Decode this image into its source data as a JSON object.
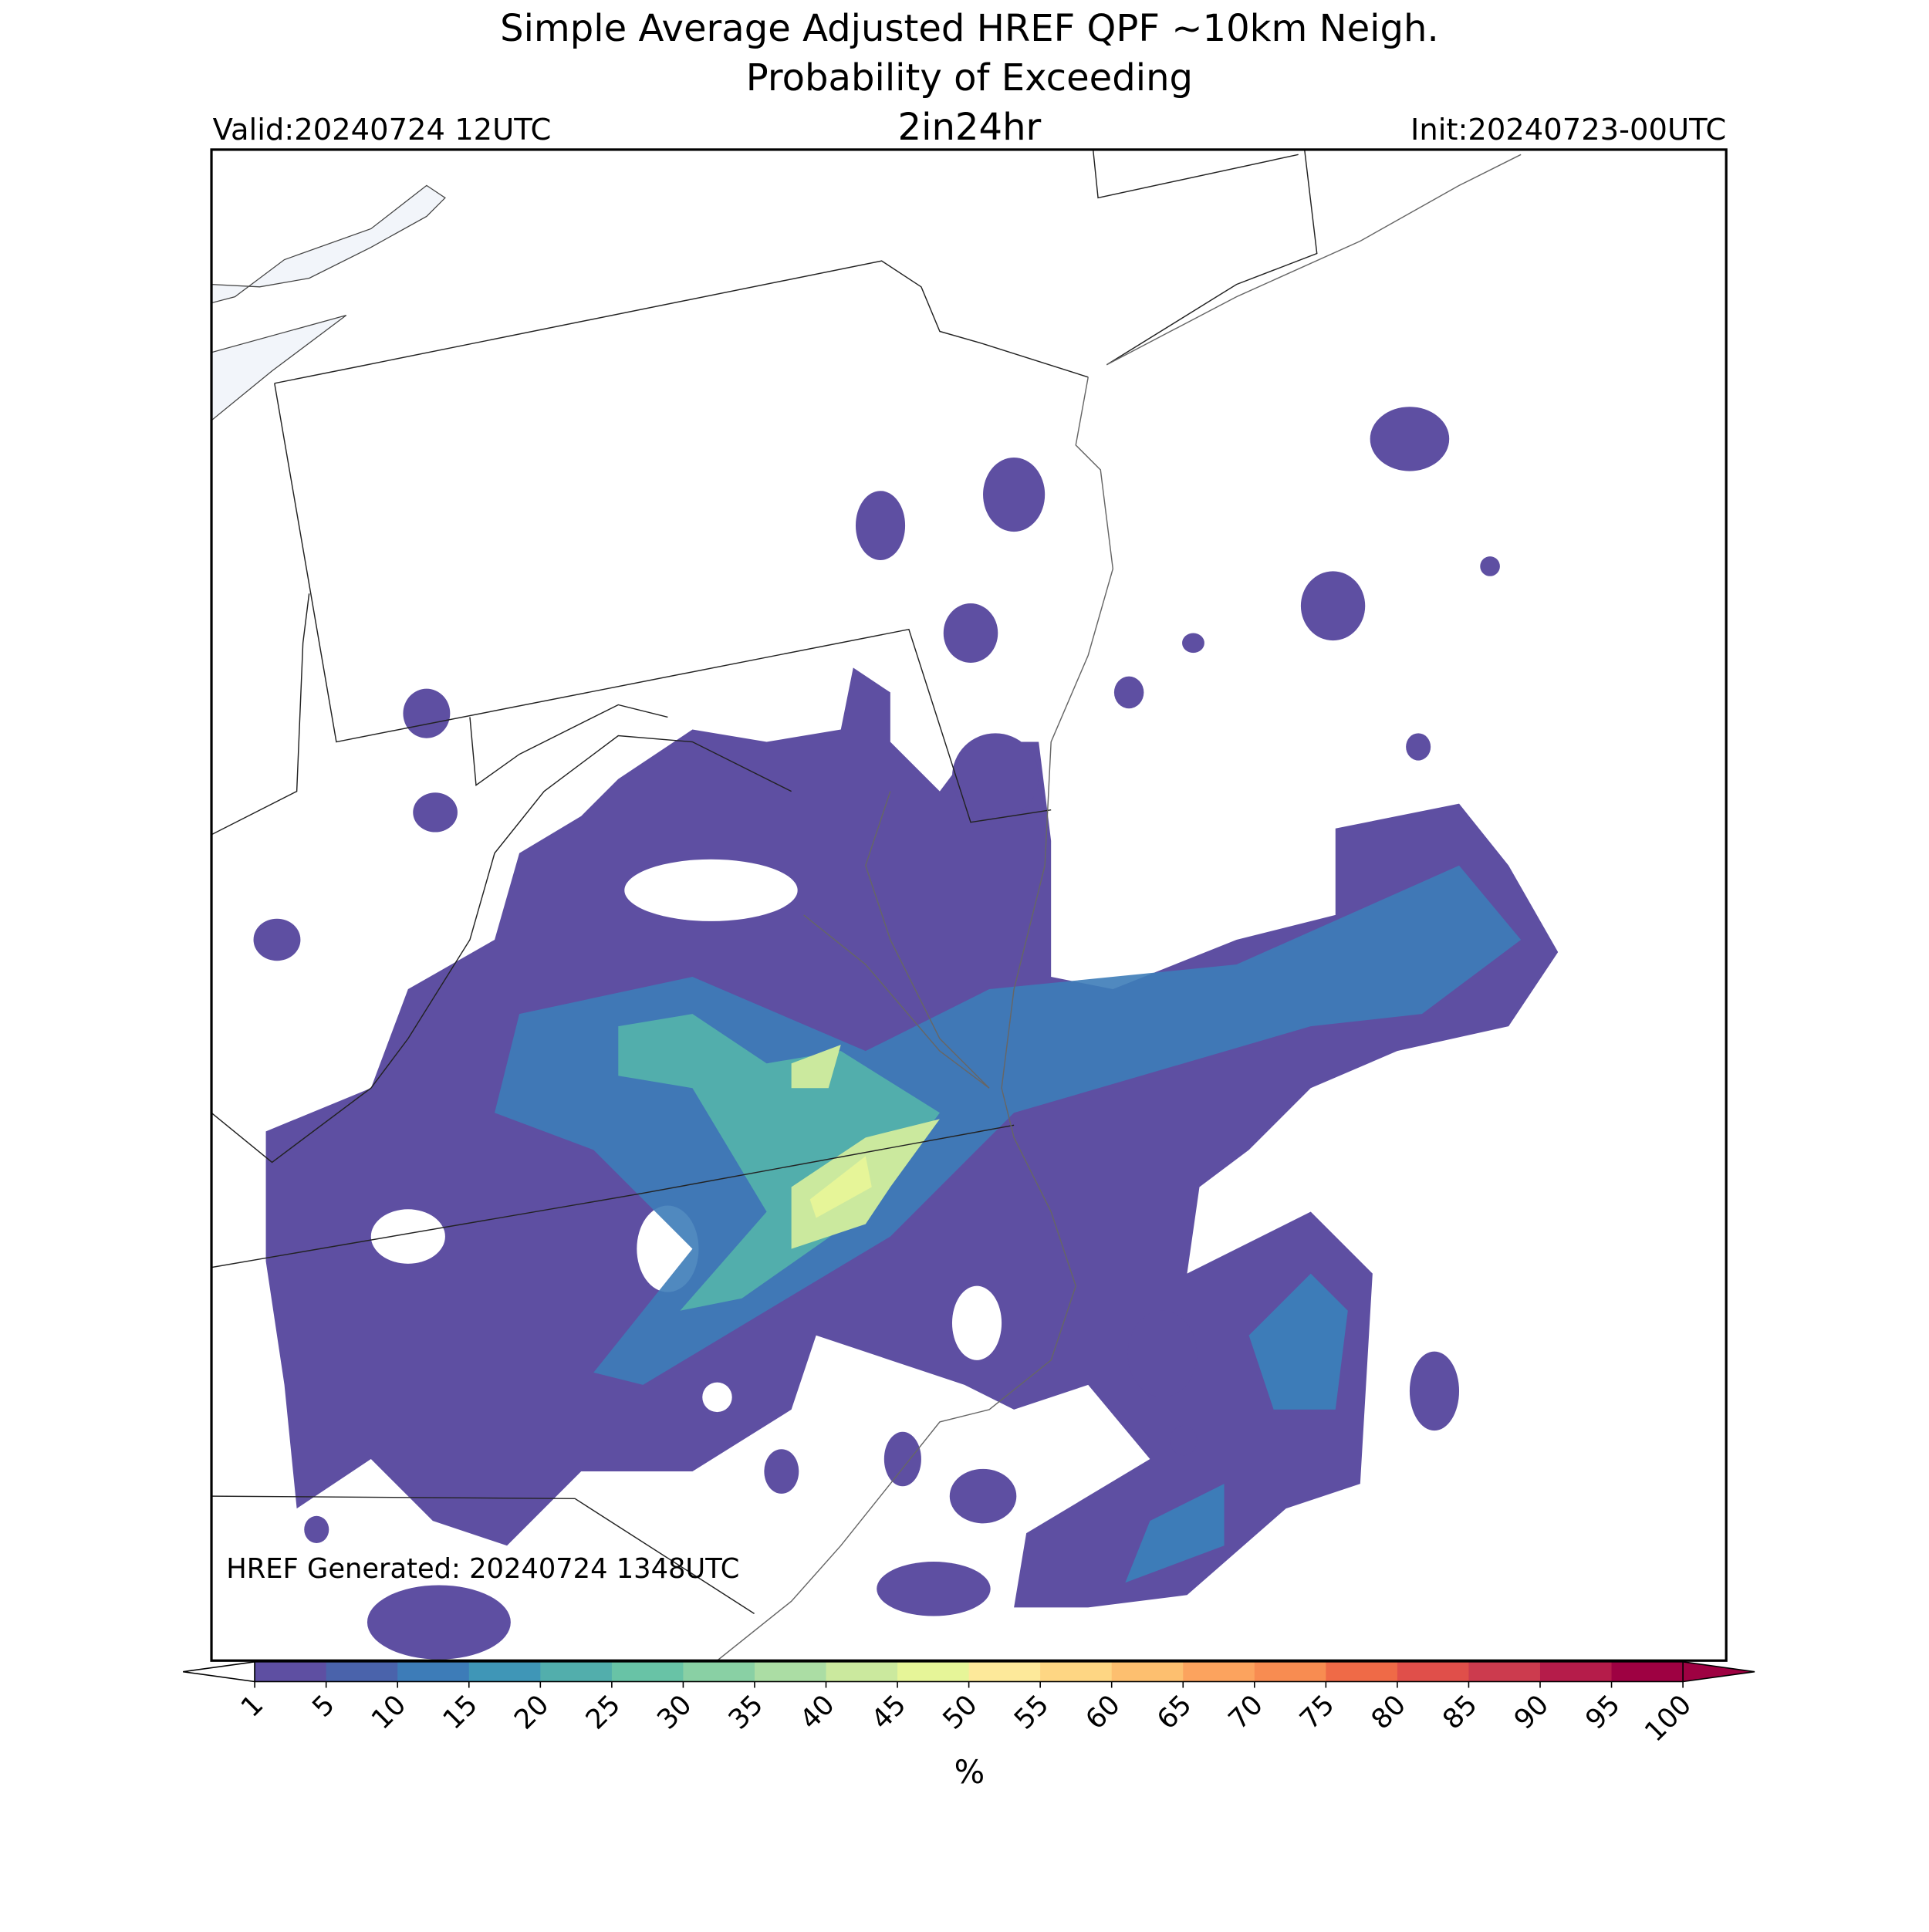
{
  "header": {
    "title": [
      "Simple Average Adjusted HREF QPF ~10km Neigh.",
      "Probability of Exceeding"
    ],
    "threshold": "2in24hr",
    "valid": "Valid:20240724 12UTC",
    "init": "Init:20240723-00UTC"
  },
  "footer": {
    "generated": "HREF Generated: 20240724 1348UTC"
  },
  "colorbar": {
    "ticks": [
      1,
      5,
      10,
      15,
      20,
      25,
      30,
      35,
      40,
      45,
      50,
      55,
      60,
      65,
      70,
      75,
      80,
      85,
      90,
      95,
      100
    ],
    "colors": [
      "#5e4fa2",
      "#4a63ab",
      "#3d7cb8",
      "#3f96b7",
      "#52aeac",
      "#68c3a6",
      "#89d0a4",
      "#abdda4",
      "#cbe99e",
      "#e6f598",
      "#fde99a",
      "#fed683",
      "#fdbf6f",
      "#fca35e",
      "#f88c51",
      "#ef6a47",
      "#e04f4a",
      "#cc3b4e",
      "#b51c4a",
      "#9e0142"
    ],
    "under": "#ffffff",
    "over": "#9e0142",
    "label": "%"
  }
}
